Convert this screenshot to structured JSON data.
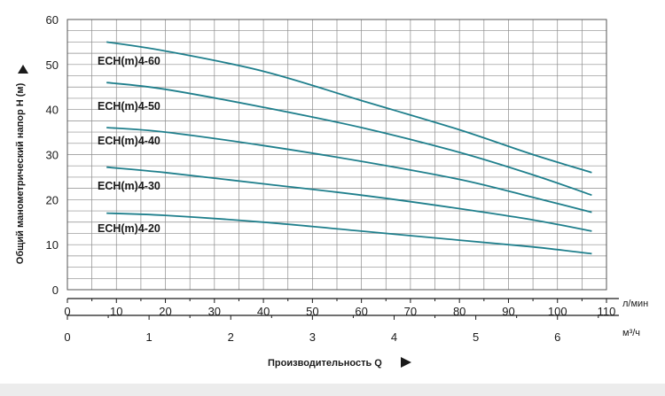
{
  "chart_data": {
    "type": "line",
    "ylabel": "Общий манометрический напор H (м)",
    "xlabel": "Производительность Q",
    "x_unit_primary": "л/мин",
    "x_unit_secondary": "м³/ч",
    "xlim": [
      0,
      110
    ],
    "ylim": [
      0,
      60
    ],
    "x_ticks": [
      0,
      10,
      20,
      30,
      40,
      50,
      60,
      70,
      80,
      90,
      100,
      110
    ],
    "y_ticks": [
      0,
      10,
      20,
      30,
      40,
      50,
      60
    ],
    "x2_ticks": [
      0,
      1,
      2,
      3,
      4,
      5,
      6
    ],
    "x2_per_x1": 0.06,
    "grid": true,
    "line_color": "#1f7f8c",
    "series": [
      {
        "name": "ECH(m)4-60",
        "x": [
          8,
          20,
          40,
          60,
          80,
          95,
          107
        ],
        "y": [
          55,
          53,
          48.5,
          42,
          35.5,
          30,
          26
        ]
      },
      {
        "name": "ECH(m)4-50",
        "x": [
          8,
          20,
          40,
          60,
          80,
          95,
          107
        ],
        "y": [
          46,
          44.5,
          40.5,
          36,
          30.5,
          25.5,
          21
        ]
      },
      {
        "name": "ECH(m)4-40",
        "x": [
          8,
          20,
          40,
          60,
          80,
          95,
          107
        ],
        "y": [
          36,
          35,
          32,
          28.5,
          24.5,
          20.5,
          17.2
        ]
      },
      {
        "name": "ECH(m)4-30",
        "x": [
          8,
          20,
          40,
          60,
          80,
          95,
          107
        ],
        "y": [
          27.2,
          26,
          23.5,
          21,
          18,
          15.5,
          13
        ]
      },
      {
        "name": "ECH(m)4-20",
        "x": [
          8,
          20,
          40,
          60,
          80,
          95,
          107
        ],
        "y": [
          17,
          16.5,
          15,
          13,
          11,
          9.5,
          8
        ]
      }
    ]
  }
}
